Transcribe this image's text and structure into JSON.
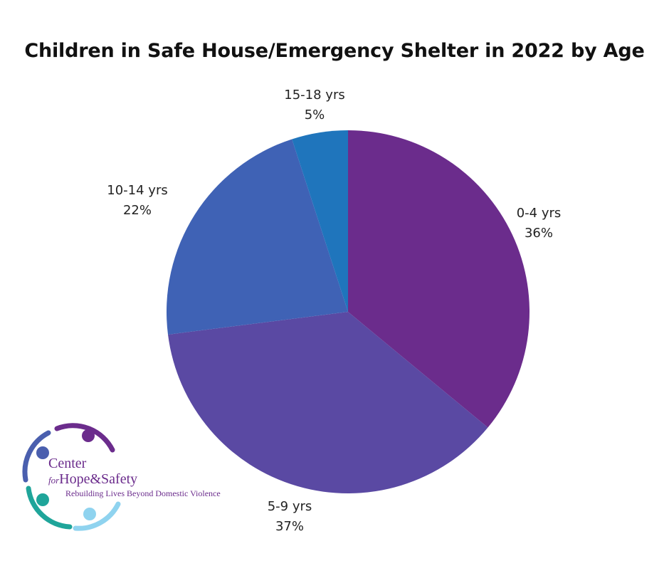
{
  "chart_data": {
    "type": "pie",
    "title": "Children in Safe House/Emergency Shelter in 2022 by Age",
    "slices": [
      {
        "label": "0-4 yrs",
        "value": 36,
        "value_label": "36%",
        "color": "#6b2c8c"
      },
      {
        "label": "5-9 yrs",
        "value": 37,
        "value_label": "37%",
        "color": "#5a49a3"
      },
      {
        "label": "10-14 yrs",
        "value": 22,
        "value_label": "22%",
        "color": "#3f62b5"
      },
      {
        "label": "15-18 yrs",
        "value": 5,
        "value_label": "5%",
        "color": "#1f75bc"
      }
    ],
    "start": "12 o'clock, clockwise"
  },
  "logo": {
    "line1": "Center",
    "for_word": "for",
    "line2": "Hope&Safety",
    "tagline": "Rebuilding Lives Beyond Domestic Violence",
    "colors": {
      "purple": "#6b2c8c",
      "blue": "#4a5fae",
      "teal": "#1fa59a",
      "light_blue": "#8fd3ef"
    }
  }
}
